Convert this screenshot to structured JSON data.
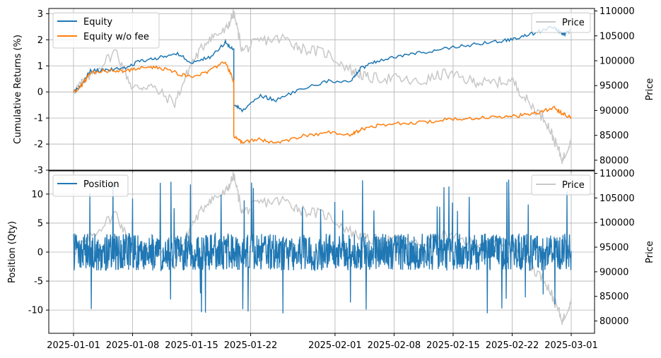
{
  "chart_data": [
    {
      "type": "line",
      "panel": "top",
      "ylabel": "Cumulative Returns (%)",
      "y2label": "Price",
      "x_ticks": [
        "2025-01-01",
        "2025-01-08",
        "2025-01-15",
        "2025-01-22",
        "2025-02-01",
        "2025-02-08",
        "2025-02-15",
        "2025-02-22",
        "2025-03-01"
      ],
      "xlim": [
        "2025-01-01",
        "2025-03-01"
      ],
      "ylim": [
        -3,
        3.2
      ],
      "y2lim": [
        78000,
        110500
      ],
      "y_ticks": [
        "3",
        "2",
        "1",
        "0",
        "-1",
        "-2",
        "-3"
      ],
      "y2_ticks": [
        "110000",
        "105000",
        "100000",
        "95000",
        "90000",
        "85000",
        "80000"
      ],
      "grid": true,
      "legend_left": "upper-left",
      "legend_right": "upper-right",
      "series": [
        {
          "name": "Equity",
          "color": "#1f77b4",
          "x": [
            "2025-01-01",
            "2025-01-02",
            "2025-01-03",
            "2025-01-05",
            "2025-01-07",
            "2025-01-09",
            "2025-01-11",
            "2025-01-13",
            "2025-01-15",
            "2025-01-17",
            "2025-01-19",
            "2025-01-20",
            "2025-01-20",
            "2025-01-21",
            "2025-01-23",
            "2025-01-25",
            "2025-01-28",
            "2025-01-31",
            "2025-02-03",
            "2025-02-04",
            "2025-02-06",
            "2025-02-09",
            "2025-02-12",
            "2025-02-15",
            "2025-02-18",
            "2025-02-21",
            "2025-02-23",
            "2025-02-25",
            "2025-02-27",
            "2025-02-28",
            "2025-03-01"
          ],
          "y": [
            0,
            0.3,
            0.8,
            0.85,
            0.9,
            1.2,
            1.3,
            1.5,
            1.15,
            1.3,
            1.9,
            1.6,
            -0.5,
            -0.7,
            -0.15,
            -0.3,
            0.1,
            0.4,
            0.45,
            0.9,
            1.2,
            1.4,
            1.55,
            1.7,
            1.85,
            1.95,
            2.1,
            2.3,
            2.5,
            2.2,
            2.35
          ]
        },
        {
          "name": "Equity w/o fee",
          "color": "#ff7f0e",
          "x": [
            "2025-01-01",
            "2025-01-02",
            "2025-01-03",
            "2025-01-05",
            "2025-01-07",
            "2025-01-09",
            "2025-01-11",
            "2025-01-13",
            "2025-01-15",
            "2025-01-17",
            "2025-01-19",
            "2025-01-20",
            "2025-01-20",
            "2025-01-21",
            "2025-01-23",
            "2025-01-25",
            "2025-01-28",
            "2025-01-31",
            "2025-02-03",
            "2025-02-04",
            "2025-02-06",
            "2025-02-09",
            "2025-02-12",
            "2025-02-15",
            "2025-02-18",
            "2025-02-21",
            "2025-02-23",
            "2025-02-25",
            "2025-02-27",
            "2025-02-28",
            "2025-03-01"
          ],
          "y": [
            0,
            0.25,
            0.75,
            0.8,
            0.8,
            0.95,
            0.95,
            0.75,
            0.55,
            0.8,
            1.15,
            0.4,
            -1.7,
            -1.95,
            -1.8,
            -2.0,
            -1.7,
            -1.55,
            -1.65,
            -1.45,
            -1.3,
            -1.2,
            -1.15,
            -1.05,
            -1.0,
            -0.95,
            -0.9,
            -0.8,
            -0.6,
            -0.85,
            -0.95
          ]
        },
        {
          "name": "Price",
          "color": "#c8c8c8",
          "axis": "right",
          "x": [
            "2025-01-01",
            "2025-01-03",
            "2025-01-06",
            "2025-01-08",
            "2025-01-10",
            "2025-01-13",
            "2025-01-15",
            "2025-01-17",
            "2025-01-19",
            "2025-01-20",
            "2025-01-21",
            "2025-01-23",
            "2025-01-26",
            "2025-01-28",
            "2025-01-31",
            "2025-02-03",
            "2025-02-05",
            "2025-02-08",
            "2025-02-11",
            "2025-02-14",
            "2025-02-17",
            "2025-02-19",
            "2025-02-22",
            "2025-02-24",
            "2025-02-26",
            "2025-02-27",
            "2025-02-28",
            "2025-03-01"
          ],
          "y": [
            94000,
            97000,
            102000,
            94500,
            95000,
            91500,
            99500,
            104500,
            106000,
            109500,
            102000,
            104000,
            104500,
            102500,
            101500,
            98000,
            96500,
            96500,
            95500,
            97500,
            96000,
            95500,
            96000,
            91500,
            88000,
            84000,
            80000,
            84500
          ]
        }
      ]
    },
    {
      "type": "line",
      "panel": "bottom",
      "ylabel": "Position (Qty)",
      "y2label": "Price",
      "x_ticks": [
        "2025-01-01",
        "2025-01-08",
        "2025-01-15",
        "2025-01-22",
        "2025-02-01",
        "2025-02-08",
        "2025-02-15",
        "2025-02-22",
        "2025-03-01"
      ],
      "xlim": [
        "2025-01-01",
        "2025-03-01"
      ],
      "ylim": [
        -14,
        14
      ],
      "y2lim": [
        77500,
        110500
      ],
      "y_ticks": [
        "10",
        "5",
        "0",
        "-5",
        "-10"
      ],
      "y2_ticks": [
        "110000",
        "105000",
        "100000",
        "95000",
        "90000",
        "85000",
        "80000"
      ],
      "grid": true,
      "legend_left": "upper-left",
      "legend_right": "upper-right",
      "series": [
        {
          "name": "Position",
          "color": "#1f77b4",
          "note_visible": "high-frequency oscillation around 0, mostly within -5..5 with spikes to about +/-12",
          "y_range": [
            -12.5,
            12.5
          ]
        },
        {
          "name": "Price",
          "color": "#c8c8c8",
          "axis": "right",
          "x": [
            "2025-01-01",
            "2025-01-03",
            "2025-01-06",
            "2025-01-08",
            "2025-01-10",
            "2025-01-13",
            "2025-01-15",
            "2025-01-17",
            "2025-01-19",
            "2025-01-20",
            "2025-01-21",
            "2025-01-23",
            "2025-01-26",
            "2025-01-28",
            "2025-01-31",
            "2025-02-03",
            "2025-02-05",
            "2025-02-08",
            "2025-02-11",
            "2025-02-14",
            "2025-02-17",
            "2025-02-19",
            "2025-02-22",
            "2025-02-24",
            "2025-02-26",
            "2025-02-27",
            "2025-02-28",
            "2025-03-01"
          ],
          "y": [
            94000,
            97000,
            102000,
            94500,
            95000,
            91500,
            99500,
            104500,
            106000,
            109500,
            102000,
            104000,
            104500,
            102500,
            101500,
            98000,
            96500,
            96500,
            95500,
            97500,
            96000,
            95500,
            96000,
            91500,
            88000,
            84000,
            80000,
            84500
          ]
        }
      ]
    }
  ]
}
